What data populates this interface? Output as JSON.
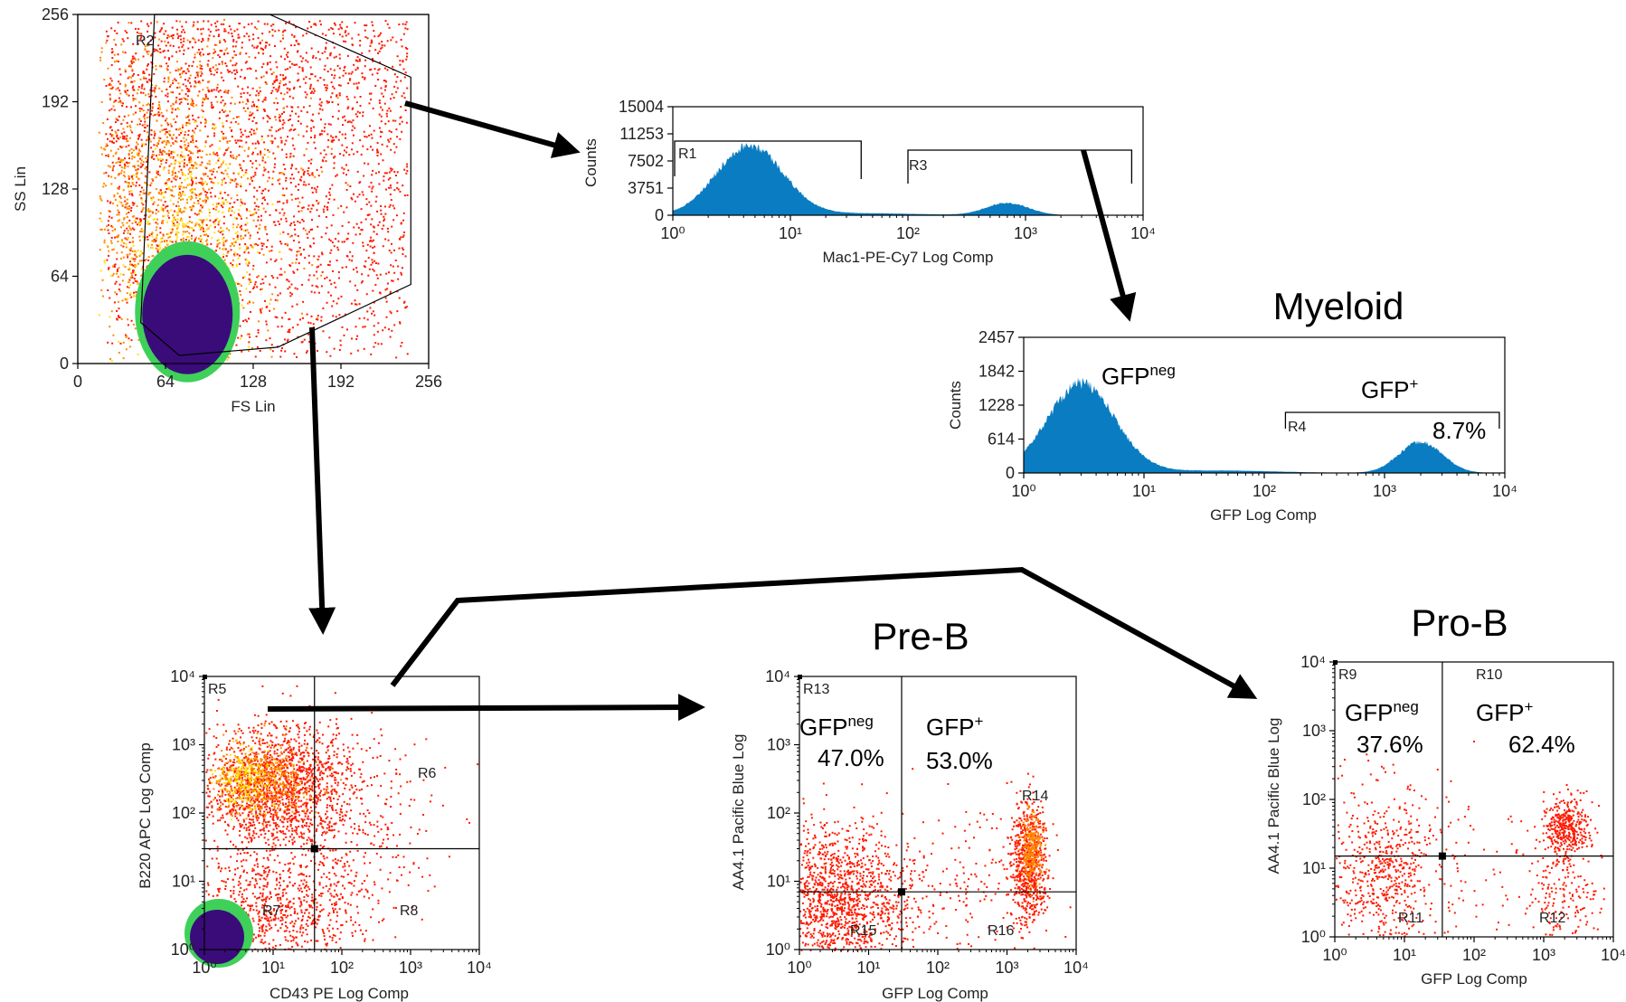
{
  "colors": {
    "hist_fill": "#0a7cc1",
    "dot_red": "#ff1a00",
    "dot_orange": "#ff8a00",
    "dot_yellow": "#ffe400",
    "dot_green": "#3fd05a",
    "dot_core": "#3a0c7a",
    "arrow": "#000000"
  },
  "chart_data": [
    {
      "id": "fs-ss",
      "type": "scatter",
      "xlabel": "FS Lin",
      "ylabel": "SS Lin",
      "xticks": [
        "0",
        "64",
        "128",
        "192",
        "256"
      ],
      "yticks": [
        "0",
        "64",
        "128",
        "192",
        "256"
      ],
      "xlim": [
        0,
        256
      ],
      "ylim": [
        0,
        256
      ],
      "regions": [
        {
          "name": "R2",
          "type": "polygon"
        }
      ],
      "gate_polygon": [
        [
          62,
          256
        ],
        [
          140,
          256
        ],
        [
          243,
          210
        ],
        [
          243,
          58
        ],
        [
          146,
          12
        ],
        [
          74,
          6
        ],
        [
          46,
          30
        ],
        [
          56,
          256
        ]
      ],
      "density": "dense population with high-density core near FS 80, SS 40"
    },
    {
      "id": "mac1-hist",
      "type": "area",
      "xlabel": "Mac1-PE-Cy7 Log Comp",
      "ylabel": "Counts",
      "scale": "log",
      "xticks": [
        "10⁰",
        "10¹",
        "10²",
        "10³",
        "10⁴"
      ],
      "yticks": [
        "0",
        "3751",
        "7502",
        "11253",
        "15004"
      ],
      "xlim": [
        1,
        10000
      ],
      "ylim": [
        0,
        15004
      ],
      "regions": [
        {
          "name": "R1",
          "range": [
            1,
            40
          ]
        },
        {
          "name": "R3",
          "range": [
            100,
            8000
          ]
        }
      ],
      "peaks": [
        {
          "center": 4.5,
          "height": 9700
        },
        {
          "center": 700,
          "height": 1700
        }
      ]
    },
    {
      "id": "myeloid-gfp-hist",
      "type": "area",
      "title": "Myeloid",
      "xlabel": "GFP Log Comp",
      "ylabel": "Counts",
      "scale": "log",
      "xticks": [
        "10⁰",
        "10¹",
        "10²",
        "10³",
        "10⁴"
      ],
      "yticks": [
        "0",
        "614",
        "1228",
        "1842",
        "2457"
      ],
      "xlim": [
        1,
        10000
      ],
      "ylim": [
        0,
        2457
      ],
      "regions": [
        {
          "name": "R4",
          "range": [
            150,
            9000
          ]
        }
      ],
      "peaks": [
        {
          "center": 3.0,
          "height": 1620
        },
        {
          "center": 2000,
          "height": 560
        }
      ],
      "labels": {
        "gfp_neg": {
          "main": "GFP",
          "sup": "neg"
        },
        "gfp_pos": {
          "main": "GFP",
          "sup": "+"
        },
        "gfp_pos_percent": "8.7%"
      }
    },
    {
      "id": "b220-cd43",
      "type": "scatter",
      "xlabel": "CD43 PE Log Comp",
      "ylabel": "B220 APC Log Comp",
      "scale": "log",
      "xticks": [
        "10⁰",
        "10¹",
        "10²",
        "10³",
        "10⁴"
      ],
      "yticks": [
        "10⁰",
        "10¹",
        "10²",
        "10³",
        "10⁴"
      ],
      "xlim": [
        1,
        10000
      ],
      "ylim": [
        1,
        10000
      ],
      "quadrant_cross": [
        40,
        30
      ],
      "regions": [
        "R5",
        "R6",
        "R7",
        "R8"
      ]
    },
    {
      "id": "preb",
      "type": "scatter",
      "title": "Pre-B",
      "xlabel": "GFP Log Comp",
      "ylabel": "AA4.1 Pacific Blue Log",
      "scale": "log",
      "xticks": [
        "10⁰",
        "10¹",
        "10²",
        "10³",
        "10⁴"
      ],
      "yticks": [
        "10⁰",
        "10¹",
        "10²",
        "10³",
        "10⁴"
      ],
      "xlim": [
        1,
        10000
      ],
      "ylim": [
        1,
        10000
      ],
      "quadrant_cross": [
        30,
        7
      ],
      "regions": [
        "R13",
        "R14",
        "R15",
        "R16"
      ],
      "labels": {
        "gfp_neg": {
          "main": "GFP",
          "sup": "neg",
          "percent": "47.0%"
        },
        "gfp_pos": {
          "main": "GFP",
          "sup": "+",
          "percent": "53.0%"
        }
      }
    },
    {
      "id": "prob",
      "type": "scatter",
      "title": "Pro-B",
      "xlabel": "GFP Log Comp",
      "ylabel": "AA4.1 Pacific Blue Log",
      "scale": "log",
      "xticks": [
        "10⁰",
        "10¹",
        "10²",
        "10³",
        "10⁴"
      ],
      "yticks": [
        "10⁰",
        "10¹",
        "10²",
        "10³",
        "10⁴"
      ],
      "xlim": [
        1,
        10000
      ],
      "ylim": [
        1,
        10000
      ],
      "quadrant_cross": [
        35,
        15
      ],
      "regions": [
        "R9",
        "R10",
        "R11",
        "R12"
      ],
      "labels": {
        "gfp_neg": {
          "main": "GFP",
          "sup": "neg",
          "percent": "37.6%"
        },
        "gfp_pos": {
          "main": "GFP",
          "sup": "+",
          "percent": "62.4%"
        }
      }
    }
  ]
}
